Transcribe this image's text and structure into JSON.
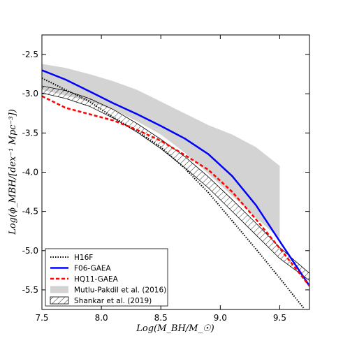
{
  "chart_data": {
    "type": "line",
    "xlabel": "Log(M_BH/M_☉)",
    "ylabel": "Log(ϕ_MBH/[dex⁻¹ Mpc⁻³])",
    "xlim": [
      7.5,
      9.75
    ],
    "ylim": [
      -5.75,
      -2.25
    ],
    "xticks": [
      "7.5",
      "8.0",
      "8.5",
      "9.0",
      "9.5"
    ],
    "yticks": [
      "-2.5",
      "-3.0",
      "-3.5",
      "-4.0",
      "-4.5",
      "-5.0",
      "-5.5"
    ],
    "grid": false,
    "legend_position": "lower-left",
    "series": [
      {
        "name": "H16F",
        "style": "dotted",
        "color": "#000000",
        "x": [
          7.5,
          7.7,
          7.9,
          8.1,
          8.3,
          8.5,
          8.7,
          8.9,
          9.1,
          9.3,
          9.5,
          9.7
        ],
        "y": [
          -2.8,
          -2.95,
          -3.1,
          -3.3,
          -3.48,
          -3.68,
          -3.95,
          -4.26,
          -4.62,
          -4.98,
          -5.35,
          -5.73
        ]
      },
      {
        "name": "F06-GAEA",
        "style": "solid",
        "color": "#0000ff",
        "x": [
          7.5,
          7.7,
          7.9,
          8.1,
          8.3,
          8.5,
          8.7,
          8.9,
          9.1,
          9.3,
          9.5,
          9.75
        ],
        "y": [
          -2.7,
          -2.82,
          -2.97,
          -3.12,
          -3.26,
          -3.41,
          -3.57,
          -3.77,
          -4.05,
          -4.42,
          -4.88,
          -5.45
        ]
      },
      {
        "name": "HQ11-GAEA",
        "style": "dashed",
        "color": "#ff0000",
        "x": [
          7.5,
          7.7,
          7.9,
          8.1,
          8.3,
          8.5,
          8.7,
          8.9,
          9.1,
          9.3,
          9.5,
          9.75
        ],
        "y": [
          -3.03,
          -3.18,
          -3.26,
          -3.34,
          -3.46,
          -3.6,
          -3.78,
          -3.97,
          -4.25,
          -4.6,
          -4.97,
          -5.45
        ]
      }
    ],
    "bands": [
      {
        "name": "Mutlu-Pakdil et al. (2016)",
        "fill": "#d3d3d3",
        "x": [
          7.5,
          7.7,
          7.9,
          8.1,
          8.3,
          8.5,
          8.7,
          8.9,
          9.1,
          9.3,
          9.5
        ],
        "upper": [
          -2.62,
          -2.67,
          -2.75,
          -2.84,
          -2.95,
          -3.1,
          -3.25,
          -3.4,
          -3.52,
          -3.68,
          -3.92
        ],
        "lower": [
          -2.95,
          -3.02,
          -3.1,
          -3.2,
          -3.35,
          -3.52,
          -3.75,
          -4.02,
          -4.3,
          -4.58,
          -4.85
        ]
      },
      {
        "name": "Shankar et al. (2019)",
        "fill": "hatch",
        "x": [
          7.5,
          7.7,
          7.9,
          8.1,
          8.3,
          8.5,
          8.7,
          8.9,
          9.1,
          9.3,
          9.5,
          9.75
        ],
        "upper": [
          -2.9,
          -2.96,
          -3.06,
          -3.2,
          -3.38,
          -3.58,
          -3.8,
          -4.06,
          -4.35,
          -4.65,
          -4.96,
          -5.29
        ],
        "lower": [
          -2.99,
          -3.06,
          -3.16,
          -3.31,
          -3.49,
          -3.7,
          -3.94,
          -4.2,
          -4.5,
          -4.8,
          -5.1,
          -5.38
        ]
      }
    ],
    "legend": [
      "H16F",
      "F06-GAEA",
      "HQ11-GAEA",
      "Mutlu-Pakdil et al. (2016)",
      "Shankar et al. (2019)"
    ]
  }
}
